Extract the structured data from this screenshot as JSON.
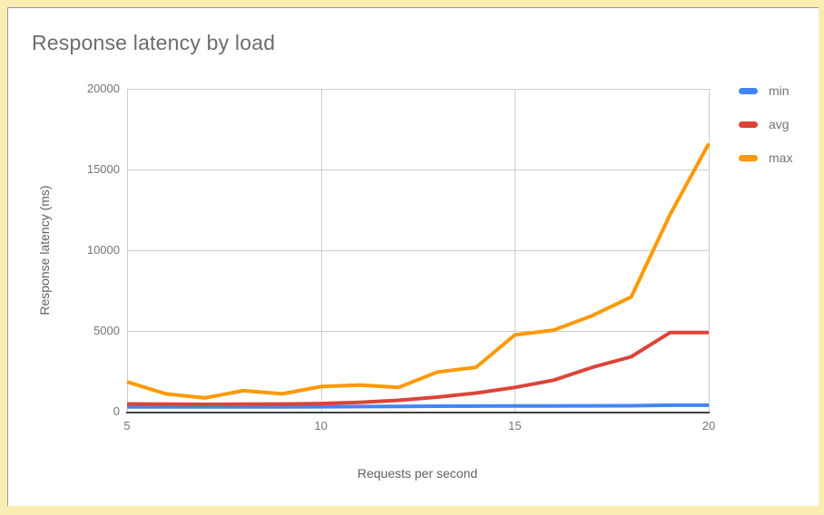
{
  "page": {
    "background_color": "#faedb2",
    "card_color": "#ffffff",
    "card_border_color": "#999999"
  },
  "chart": {
    "title": "Response latency by load",
    "title_color": "#6c6c6c",
    "axis_label_color": "#757575",
    "gridline_color": "#cccccc",
    "axis_line_color": "#424242"
  },
  "chart_data": {
    "type": "line",
    "title": "Response latency by load",
    "xlabel": "Requests per second",
    "ylabel": "Response latency (ms)",
    "xlim": [
      5,
      20
    ],
    "ylim": [
      0,
      20000
    ],
    "x_ticks": [
      5,
      10,
      15,
      20
    ],
    "y_ticks": [
      0,
      5000,
      10000,
      15000,
      20000
    ],
    "grid": true,
    "legend_position": "right",
    "x": [
      5,
      6,
      7,
      8,
      9,
      10,
      11,
      12,
      13,
      14,
      15,
      16,
      17,
      18,
      19,
      20
    ],
    "series": [
      {
        "name": "min",
        "color": "#4285f4",
        "values": [
          300,
          295,
          290,
          295,
          300,
          305,
          315,
          325,
          335,
          345,
          350,
          355,
          360,
          365,
          400,
          400
        ]
      },
      {
        "name": "avg",
        "color": "#db4437",
        "values": [
          480,
          460,
          450,
          460,
          470,
          500,
          580,
          700,
          900,
          1150,
          1500,
          1950,
          2750,
          3400,
          4900,
          4900
        ]
      },
      {
        "name": "max",
        "color": "#ff9900",
        "values": [
          1850,
          1100,
          850,
          1300,
          1100,
          1550,
          1650,
          1500,
          2450,
          2750,
          4750,
          5050,
          5950,
          7100,
          12200,
          16600
        ]
      }
    ]
  }
}
